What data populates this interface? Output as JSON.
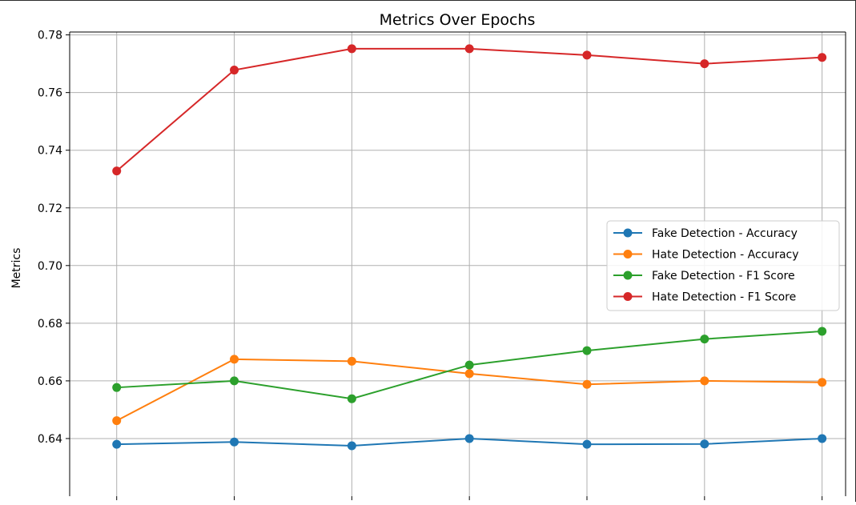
{
  "chart_data": {
    "type": "line",
    "title": "Metrics Over Epochs",
    "xlabel": "",
    "ylabel": "Metrics",
    "ylim": [
      0.62,
      0.781
    ],
    "yticks": [
      "0.64",
      "0.66",
      "0.68",
      "0.70",
      "0.72",
      "0.74",
      "0.76",
      "0.78"
    ],
    "grid": true,
    "legend_position": "center-right",
    "x": [
      1,
      2,
      3,
      4,
      5,
      6,
      7
    ],
    "series": [
      {
        "name": "Fake Detection - Accuracy",
        "color": "#1f77b4",
        "values": [
          0.638,
          0.6388,
          0.6375,
          0.64,
          0.638,
          0.6381,
          0.64
        ]
      },
      {
        "name": "Hate Detection - Accuracy",
        "color": "#ff7f0e",
        "values": [
          0.6462,
          0.6675,
          0.6668,
          0.6625,
          0.6588,
          0.66,
          0.6595
        ]
      },
      {
        "name": "Fake Detection - F1 Score",
        "color": "#2ca02c",
        "values": [
          0.6577,
          0.66,
          0.6538,
          0.6655,
          0.6705,
          0.6745,
          0.6772
        ]
      },
      {
        "name": "Hate Detection - F1 Score",
        "color": "#d62728",
        "values": [
          0.7328,
          0.7678,
          0.7752,
          0.7752,
          0.773,
          0.77,
          0.7722
        ]
      }
    ]
  }
}
